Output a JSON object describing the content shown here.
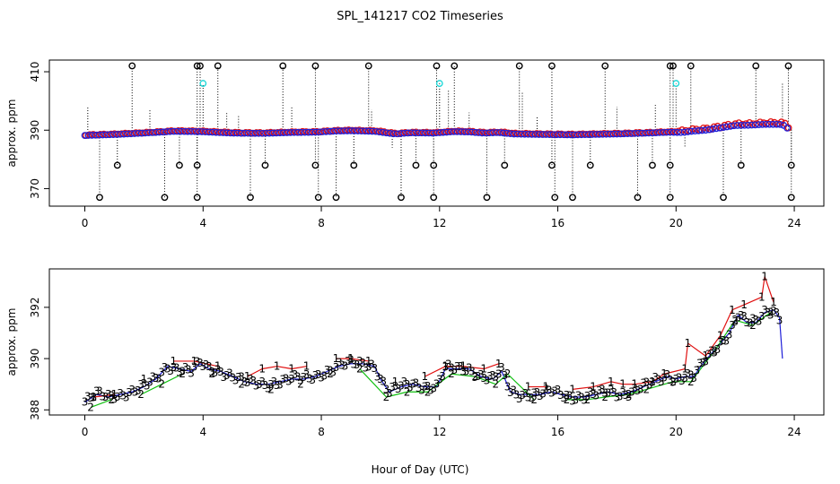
{
  "title": "SPL_141217  CO2 Timeseries",
  "xlabel": "Hour of Day (UTC)",
  "colors": {
    "axis": "#000000",
    "markers_black": "#000000",
    "markers_blue": "#1f1fd8",
    "markers_red": "#e01010",
    "markers_green": "#10c010",
    "markers_cyan": "#20d8d8",
    "drop_lines": "#000000"
  },
  "chart_data": [
    {
      "type": "scatter",
      "name": "top-panel",
      "ylabel": "approx. ppm",
      "xlim": [
        -1.2,
        25
      ],
      "ylim": [
        364,
        414
      ],
      "xticks": [
        0,
        4,
        8,
        12,
        16,
        20,
        24
      ],
      "yticks": [
        370,
        390,
        410
      ],
      "baseline": {
        "x": [
          0,
          1,
          2,
          3,
          3.9,
          4.5,
          5,
          6,
          7,
          7.8,
          8.5,
          9,
          9.8,
          10.5,
          11,
          11.8,
          12.5,
          13,
          13.5,
          14,
          14.5,
          15,
          15.7,
          16.5,
          17,
          18,
          19,
          19.8,
          20.2,
          20.5,
          21,
          21.5,
          22,
          22.5,
          23,
          23.5,
          23.7,
          23.8
        ],
        "y": [
          388.2,
          388.5,
          389,
          389.6,
          389.5,
          389.2,
          389,
          388.9,
          389.2,
          389.3,
          389.7,
          389.8,
          389.6,
          388.7,
          389.1,
          389,
          389.5,
          389.4,
          389,
          389.2,
          388.7,
          388.6,
          388.5,
          388.4,
          388.5,
          388.7,
          389,
          389.3,
          389.2,
          389.6,
          390,
          390.8,
          391.6,
          391.7,
          392,
          392,
          391.5,
          390.2
        ]
      },
      "spike_high": {
        "x": [
          1.6,
          3.8,
          3.9,
          4.5,
          6.7,
          7.8,
          9.6,
          11.9,
          12.5,
          14.7,
          15.8,
          17.6,
          19.8,
          19.9,
          20.5,
          22.7,
          23.8
        ],
        "y": [
          412,
          412,
          412,
          412,
          412,
          412,
          412,
          412,
          412,
          412,
          412,
          412,
          412,
          412,
          412,
          412,
          412
        ]
      },
      "spike_mid": {
        "x": [
          1.1,
          3.2,
          3.8,
          6.1,
          7.8,
          9.1,
          11.2,
          11.8,
          14.2,
          15.8,
          17.1,
          19.2,
          19.8,
          22.2,
          23.9
        ],
        "y": [
          378,
          378,
          378,
          378,
          378,
          378,
          378,
          378,
          378,
          378,
          378,
          378,
          378,
          378,
          378
        ]
      },
      "spike_low": {
        "x": [
          0.5,
          2.7,
          3.8,
          5.6,
          7.9,
          8.5,
          10.7,
          11.8,
          13.6,
          15.9,
          16.5,
          18.7,
          19.8,
          21.6,
          23.9
        ],
        "y": [
          367,
          367,
          367,
          367,
          367,
          367,
          367,
          367,
          367,
          367,
          367,
          367,
          367,
          367,
          367
        ]
      },
      "spike_cyan": {
        "x": [
          4.0,
          12.0,
          20.0
        ],
        "y": [
          406,
          406,
          406
        ]
      },
      "drop_lines_other": {
        "x": [
          0.1,
          2.2,
          4.8,
          5.2,
          7.0,
          9.7,
          10.4,
          12.3,
          13.0,
          14.8,
          15.3,
          18.0,
          19.3,
          20.3,
          23.6
        ],
        "y": [
          398,
          397,
          396,
          395,
          398,
          397,
          384,
          404,
          396,
          403,
          395,
          398,
          399,
          384,
          406
        ]
      },
      "series": [
        {
          "name": "red",
          "marker": "o"
        },
        {
          "name": "blue",
          "marker": "o"
        },
        {
          "name": "black",
          "marker": "o"
        },
        {
          "name": "cyan",
          "marker": "o"
        }
      ]
    },
    {
      "type": "scatter",
      "name": "bottom-panel",
      "ylabel": "approx. ppm",
      "xlim": [
        -1.2,
        25
      ],
      "ylim": [
        387.8,
        393.5
      ],
      "xticks": [
        0,
        4,
        8,
        12,
        16,
        20,
        24
      ],
      "yticks": [
        388,
        390,
        392
      ],
      "series": [
        {
          "name": "blue",
          "symbol": "3",
          "x": [
            0,
            0.4,
            0.8,
            1.2,
            1.6,
            2.0,
            2.4,
            2.8,
            3.2,
            3.6,
            3.9,
            4.2,
            4.6,
            5.0,
            5.4,
            5.8,
            6.2,
            6.6,
            7.0,
            7.4,
            7.8,
            8.2,
            8.6,
            9.0,
            9.4,
            9.8,
            10.0,
            10.3,
            10.7,
            11.1,
            11.5,
            11.9,
            12.2,
            12.6,
            13.0,
            13.4,
            13.8,
            14.1,
            14.4,
            14.7,
            15.0,
            15.4,
            15.8,
            16.1,
            16.5,
            16.9,
            17.3,
            17.7,
            18.1,
            18.5,
            18.9,
            19.3,
            19.7,
            20.0,
            20.3,
            20.6,
            20.9,
            21.2,
            21.5,
            21.8,
            22.1,
            22.4,
            22.7,
            23.0,
            23.3,
            23.5,
            23.6
          ],
          "y": [
            388.3,
            388.6,
            388.5,
            388.6,
            388.7,
            388.9,
            389.2,
            389.7,
            389.6,
            389.5,
            389.8,
            389.6,
            389.5,
            389.3,
            389.1,
            389.0,
            389.0,
            389.1,
            389.2,
            389.2,
            389.3,
            389.5,
            389.7,
            389.8,
            389.8,
            389.7,
            389.2,
            388.7,
            388.9,
            389.0,
            388.9,
            388.9,
            389.6,
            389.6,
            389.6,
            389.3,
            389.2,
            389.5,
            388.7,
            388.6,
            388.6,
            388.6,
            388.7,
            388.6,
            388.5,
            388.5,
            388.6,
            388.7,
            388.6,
            388.7,
            388.9,
            389.1,
            389.3,
            389.2,
            389.3,
            389.3,
            389.8,
            390.2,
            390.6,
            391.0,
            391.7,
            391.4,
            391.4,
            391.8,
            391.9,
            391.6,
            390.0
          ]
        },
        {
          "name": "red",
          "symbol": "1",
          "x": [
            0.3,
            1.0,
            2.0,
            3.0,
            3.7,
            4.5,
            5.5,
            6.0,
            6.5,
            7.0,
            7.5,
            8.5,
            9.0,
            9.6,
            10.5,
            11.5,
            12.2,
            12.8,
            13.5,
            14.0,
            15.0,
            15.6,
            16.5,
            17.2,
            17.8,
            18.2,
            18.6,
            19.2,
            19.6,
            20.3,
            20.4,
            21.0,
            21.5,
            21.9,
            22.3,
            22.9,
            23.0,
            23.3
          ],
          "y": [
            388.5,
            388.6,
            389.2,
            389.9,
            389.9,
            389.7,
            389.3,
            389.6,
            389.7,
            389.6,
            389.7,
            390.0,
            390.0,
            389.9,
            389.1,
            389.3,
            389.7,
            389.7,
            389.6,
            389.8,
            388.9,
            388.9,
            388.8,
            388.9,
            389.1,
            389.0,
            389.0,
            389.1,
            389.4,
            389.6,
            390.6,
            390.1,
            390.9,
            391.9,
            392.1,
            392.4,
            393.2,
            392.2
          ]
        },
        {
          "name": "green",
          "symbol": "2",
          "x": [
            0.2,
            0.9,
            1.9,
            2.6,
            3.3,
            4.3,
            5.3,
            6.3,
            7.3,
            8.3,
            9.3,
            10.2,
            10.9,
            11.6,
            12.4,
            13.2,
            13.9,
            14.3,
            15.2,
            16.3,
            17.0,
            17.6,
            18.4,
            19.0,
            19.9,
            20.5,
            21.3,
            22.0,
            22.6,
            23.2
          ],
          "y": [
            388.1,
            388.4,
            388.6,
            389.0,
            389.4,
            389.4,
            389.0,
            388.8,
            389.0,
            389.4,
            389.6,
            388.5,
            388.7,
            388.7,
            389.4,
            389.3,
            389.0,
            389.4,
            388.4,
            388.4,
            388.4,
            388.5,
            388.6,
            388.8,
            389.1,
            389.1,
            390.3,
            391.5,
            391.3,
            391.8
          ]
        }
      ]
    }
  ]
}
